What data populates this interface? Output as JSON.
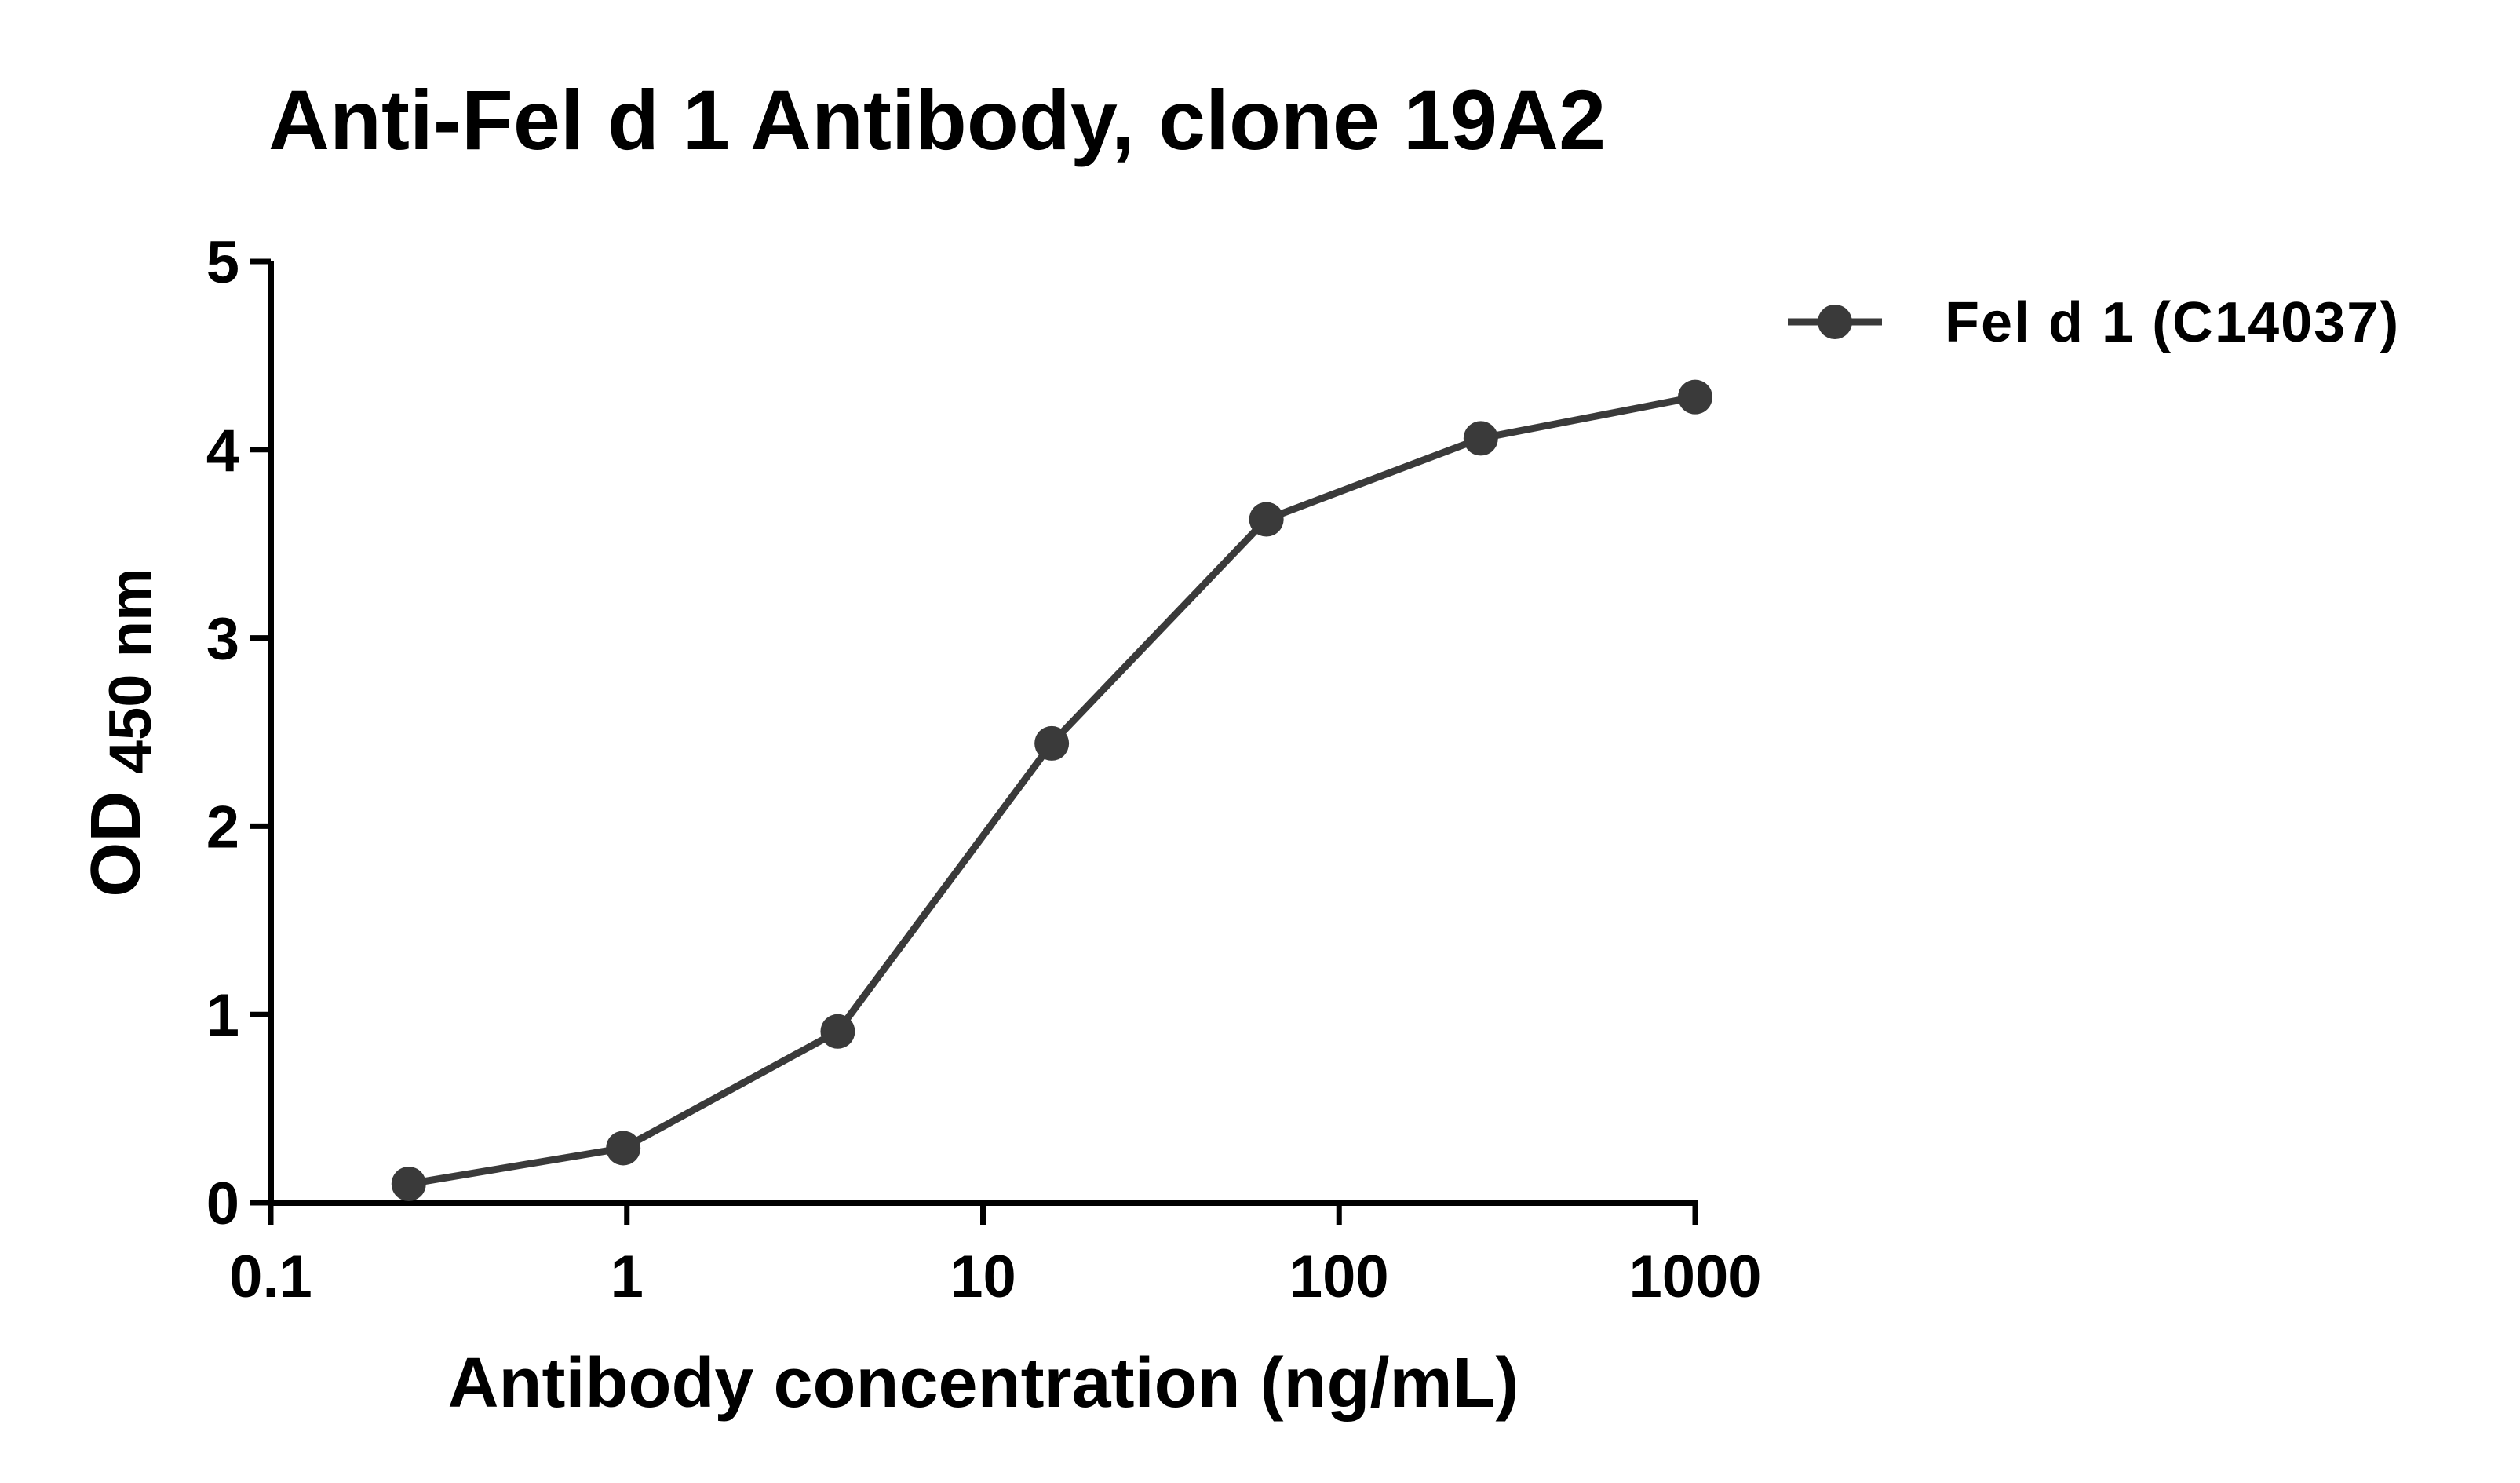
{
  "chart_data": {
    "type": "line",
    "title": "Anti-Fel d 1 Antibody, clone 19A2",
    "xlabel": "Antibody concentration (ng/mL)",
    "ylabel_main": "OD",
    "ylabel_sub": "450 nm",
    "x_scale": "log",
    "xlim": [
      0.1,
      1000
    ],
    "ylim": [
      0,
      5
    ],
    "x_ticks": [
      0.1,
      1,
      10,
      100,
      1000
    ],
    "x_tick_labels": [
      "0.1",
      "1",
      "10",
      "100",
      "1000"
    ],
    "y_ticks": [
      0,
      1,
      2,
      3,
      4,
      5
    ],
    "y_tick_labels": [
      "0",
      "1",
      "2",
      "3",
      "4",
      "5"
    ],
    "grid": false,
    "legend_position": "top-right",
    "series": [
      {
        "name": "Fel d 1 (C14037)",
        "color": "#3a3a3a",
        "marker": "circle",
        "x": [
          0.244,
          0.977,
          3.91,
          15.6,
          62.5,
          250,
          1000
        ],
        "y": [
          0.1,
          0.29,
          0.91,
          2.44,
          3.63,
          4.06,
          4.28
        ]
      }
    ]
  }
}
